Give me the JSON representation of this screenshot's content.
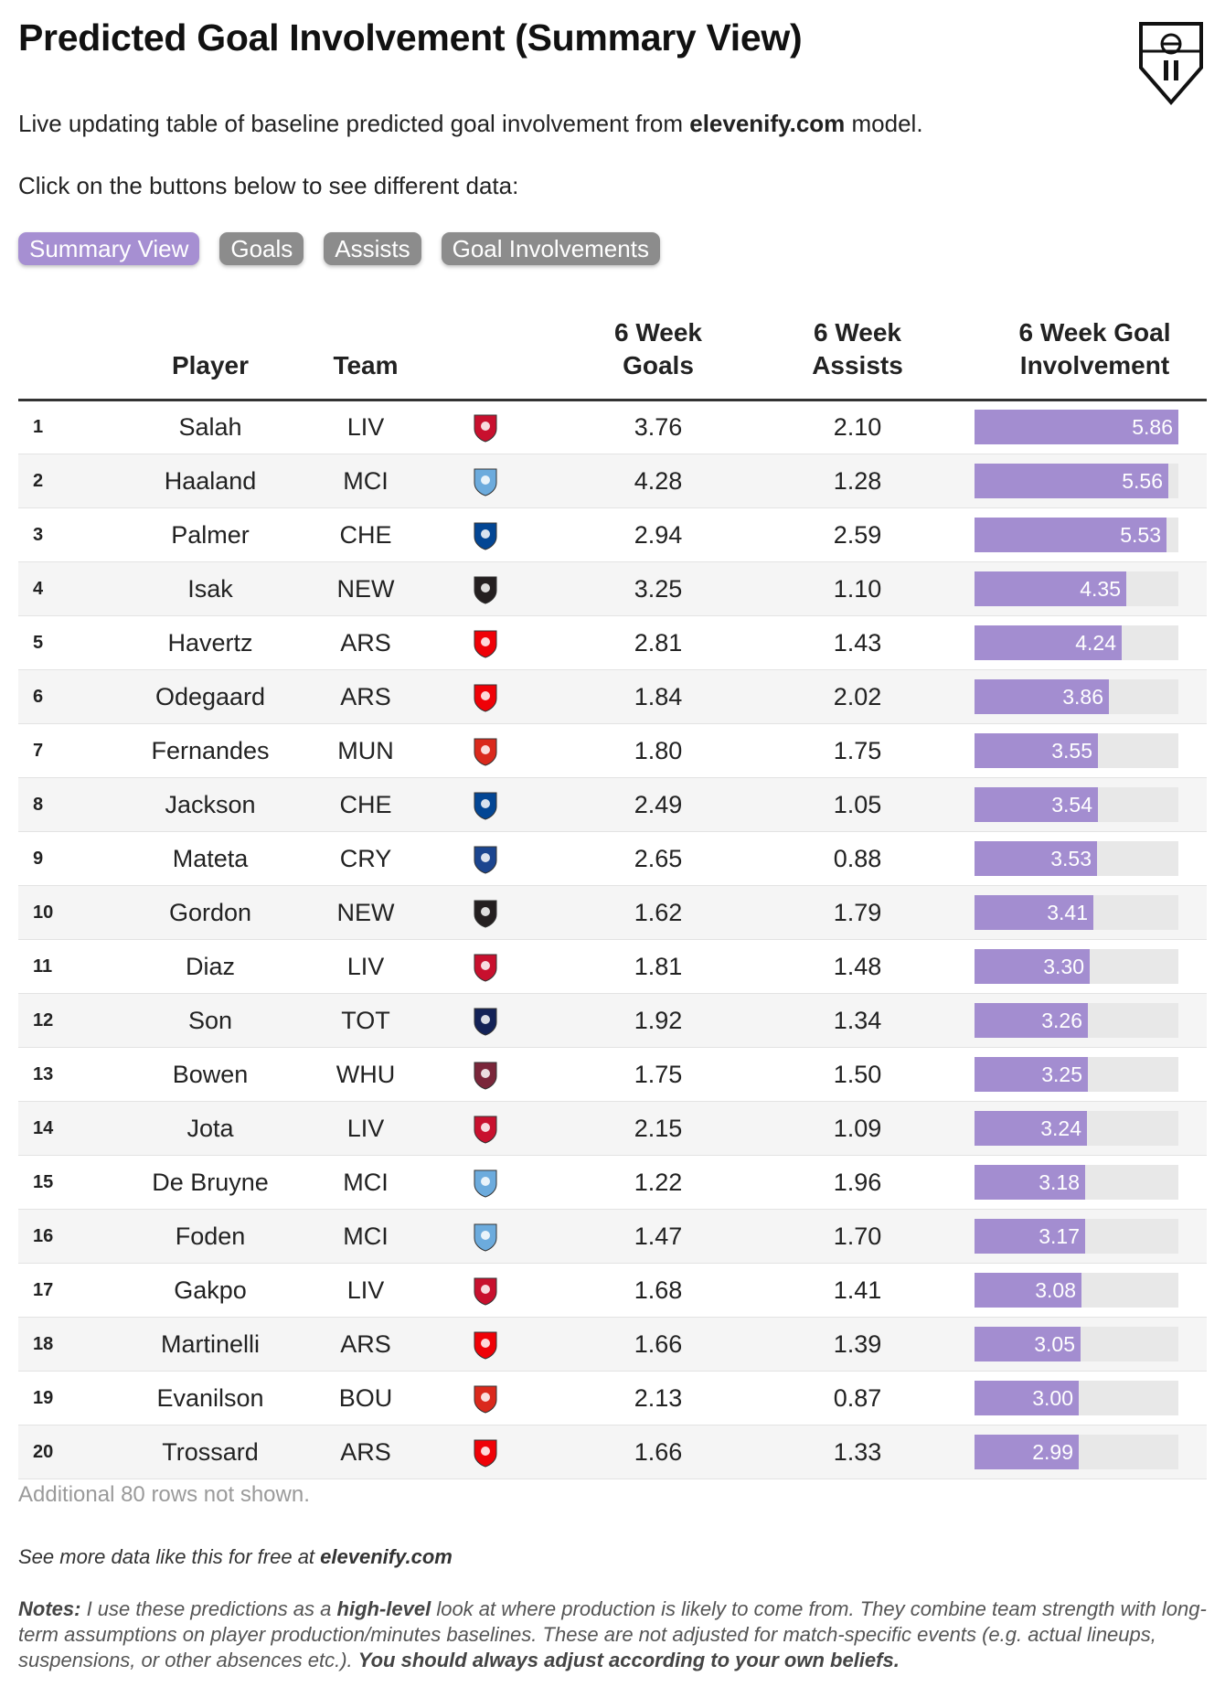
{
  "title": "Predicted Goal Involvement (Summary View)",
  "subtitle": {
    "prefix": "Live updating table of baseline predicted goal involvement from ",
    "site": "elevenify.com",
    "suffix": " model."
  },
  "instructions": "Click on the buttons below to see different data:",
  "buttons": [
    {
      "label": "Summary View",
      "active": true
    },
    {
      "label": "Goals",
      "active": false
    },
    {
      "label": "Assists",
      "active": false
    },
    {
      "label": "Goal Involvements",
      "active": false
    }
  ],
  "columns": {
    "player": "Player",
    "team": "Team",
    "goals_l1": "6 Week",
    "goals_l2": "Goals",
    "assists_l1": "6 Week",
    "assists_l2": "Assists",
    "gi_l1": "6 Week Goal",
    "gi_l2": "Involvement"
  },
  "bar_max": 5.86,
  "rows": [
    {
      "rank": "1",
      "player": "Salah",
      "team": "LIV",
      "goals": "3.76",
      "assists": "2.10",
      "gi": "5.86"
    },
    {
      "rank": "2",
      "player": "Haaland",
      "team": "MCI",
      "goals": "4.28",
      "assists": "1.28",
      "gi": "5.56"
    },
    {
      "rank": "3",
      "player": "Palmer",
      "team": "CHE",
      "goals": "2.94",
      "assists": "2.59",
      "gi": "5.53"
    },
    {
      "rank": "4",
      "player": "Isak",
      "team": "NEW",
      "goals": "3.25",
      "assists": "1.10",
      "gi": "4.35"
    },
    {
      "rank": "5",
      "player": "Havertz",
      "team": "ARS",
      "goals": "2.81",
      "assists": "1.43",
      "gi": "4.24"
    },
    {
      "rank": "6",
      "player": "Odegaard",
      "team": "ARS",
      "goals": "1.84",
      "assists": "2.02",
      "gi": "3.86"
    },
    {
      "rank": "7",
      "player": "Fernandes",
      "team": "MUN",
      "goals": "1.80",
      "assists": "1.75",
      "gi": "3.55"
    },
    {
      "rank": "8",
      "player": "Jackson",
      "team": "CHE",
      "goals": "2.49",
      "assists": "1.05",
      "gi": "3.54"
    },
    {
      "rank": "9",
      "player": "Mateta",
      "team": "CRY",
      "goals": "2.65",
      "assists": "0.88",
      "gi": "3.53"
    },
    {
      "rank": "10",
      "player": "Gordon",
      "team": "NEW",
      "goals": "1.62",
      "assists": "1.79",
      "gi": "3.41"
    },
    {
      "rank": "11",
      "player": "Diaz",
      "team": "LIV",
      "goals": "1.81",
      "assists": "1.48",
      "gi": "3.30"
    },
    {
      "rank": "12",
      "player": "Son",
      "team": "TOT",
      "goals": "1.92",
      "assists": "1.34",
      "gi": "3.26"
    },
    {
      "rank": "13",
      "player": "Bowen",
      "team": "WHU",
      "goals": "1.75",
      "assists": "1.50",
      "gi": "3.25"
    },
    {
      "rank": "14",
      "player": "Jota",
      "team": "LIV",
      "goals": "2.15",
      "assists": "1.09",
      "gi": "3.24"
    },
    {
      "rank": "15",
      "player": "De Bruyne",
      "team": "MCI",
      "goals": "1.22",
      "assists": "1.96",
      "gi": "3.18"
    },
    {
      "rank": "16",
      "player": "Foden",
      "team": "MCI",
      "goals": "1.47",
      "assists": "1.70",
      "gi": "3.17"
    },
    {
      "rank": "17",
      "player": "Gakpo",
      "team": "LIV",
      "goals": "1.68",
      "assists": "1.41",
      "gi": "3.08"
    },
    {
      "rank": "18",
      "player": "Martinelli",
      "team": "ARS",
      "goals": "1.66",
      "assists": "1.39",
      "gi": "3.05"
    },
    {
      "rank": "19",
      "player": "Evanilson",
      "team": "BOU",
      "goals": "2.13",
      "assists": "0.87",
      "gi": "3.00"
    },
    {
      "rank": "20",
      "player": "Trossard",
      "team": "ARS",
      "goals": "1.66",
      "assists": "1.33",
      "gi": "2.99"
    }
  ],
  "crest_colors": {
    "LIV": "#c8102e",
    "MCI": "#6cabdd",
    "CHE": "#034694",
    "NEW": "#241f20",
    "ARS": "#ef0107",
    "MUN": "#da291c",
    "CRY": "#1b458f",
    "TOT": "#132257",
    "WHU": "#7a263a",
    "BOU": "#da291c"
  },
  "colors": {
    "accent_bar": "#a38dd0",
    "active_button": "#a68fd2",
    "inactive_button": "#8c8c8c",
    "bar_track": "#e8e8e8"
  },
  "more_rows": "Additional 80 rows not shown.",
  "footer": {
    "prefix": "See more data like this for free at ",
    "site": "elevenify.com"
  },
  "notes": {
    "label": "Notes:",
    "t1": " I use these predictions as a ",
    "b1": "high-level",
    "t2": " look at where production is likely to come from. They combine team strength with long-term assumptions on player production/minutes baselines. These are not adjusted for match-specific events (e.g. actual lineups, suspensions, or other absences etc.). ",
    "b2": "You should always adjust according to your own beliefs."
  }
}
